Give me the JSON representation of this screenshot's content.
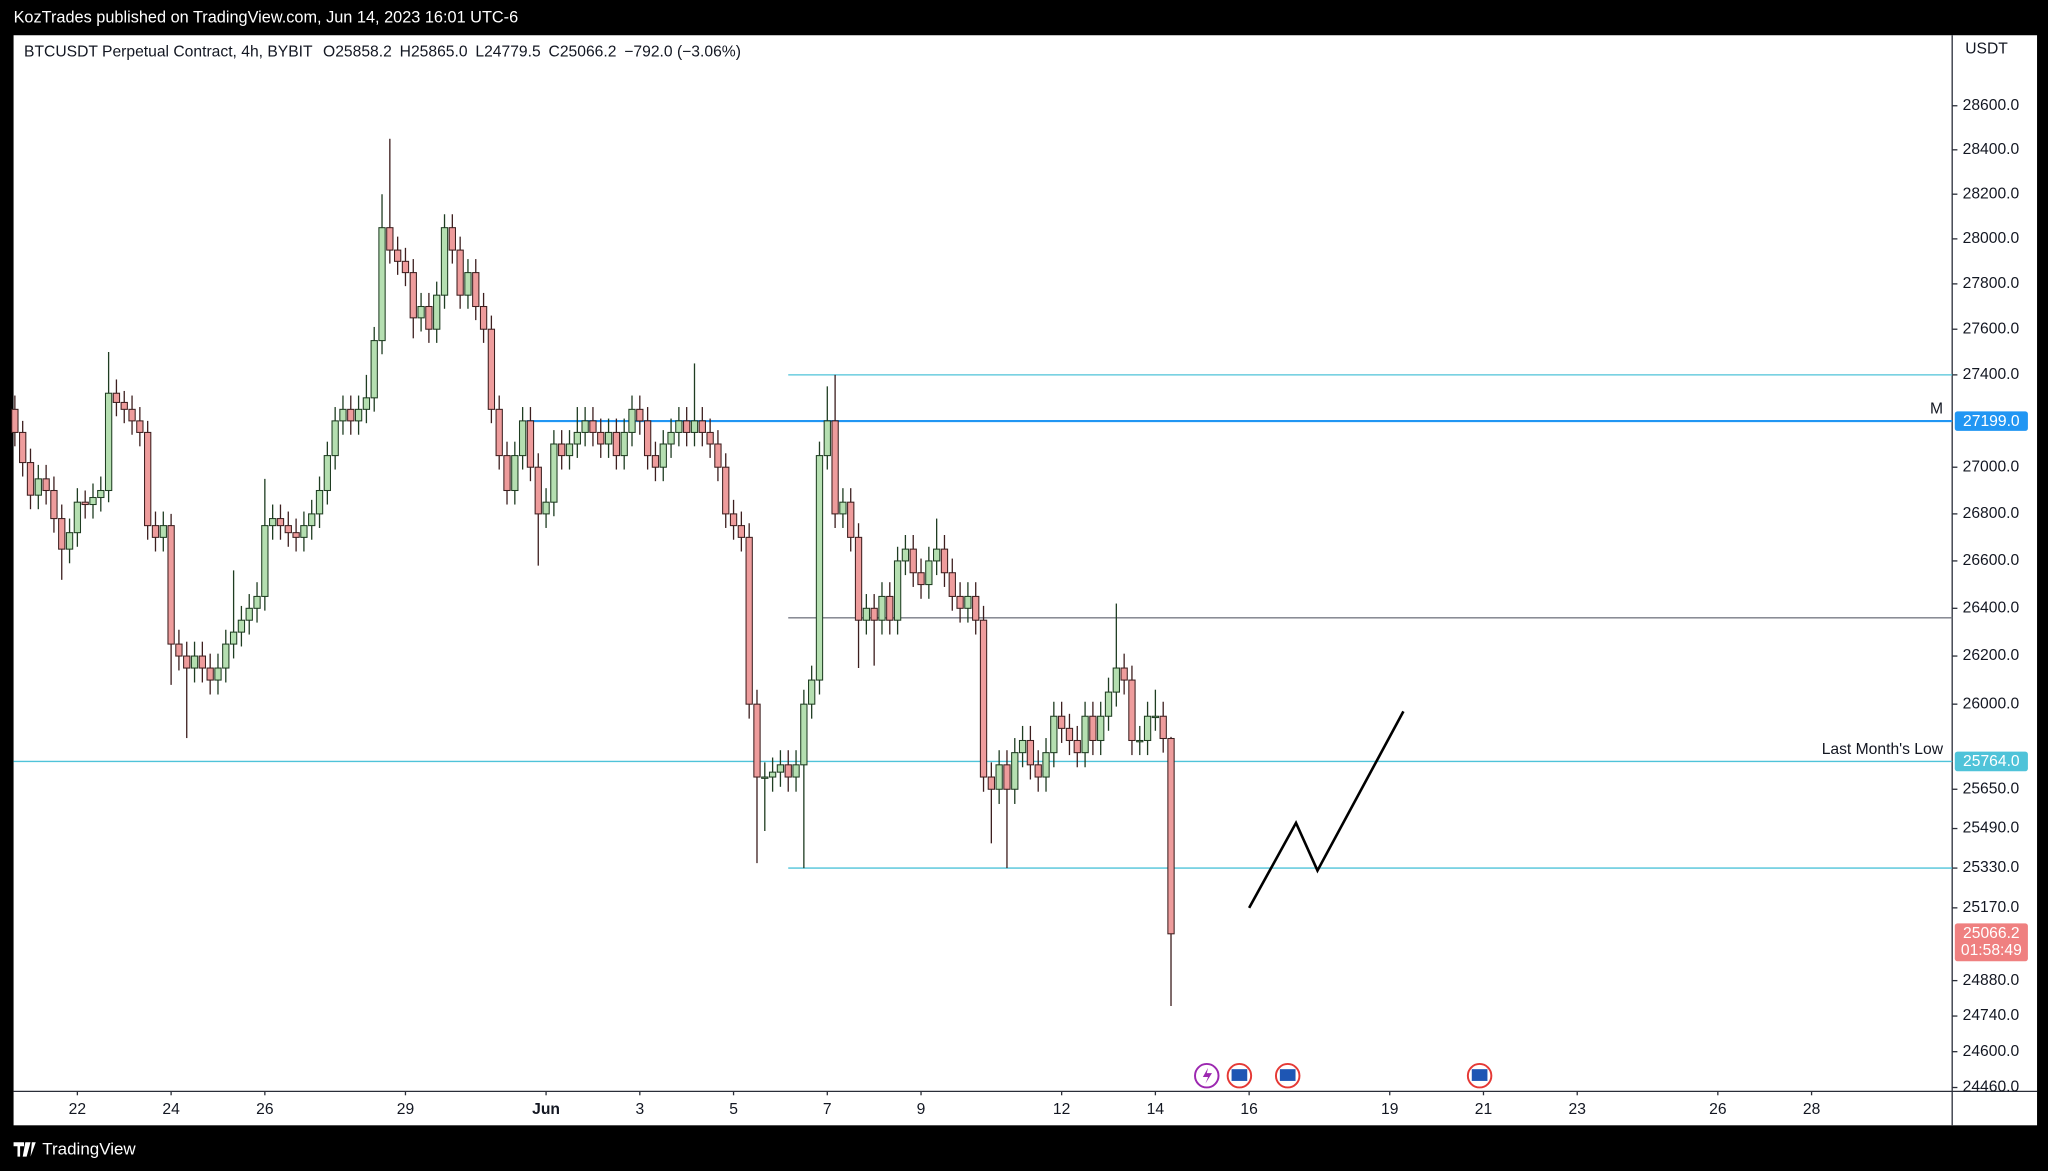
{
  "header": {
    "text": "KozTrades published on TradingView.com, Jun 14, 2023 16:01 UTC-6"
  },
  "footer": {
    "logo": "TradingView"
  },
  "chart_data": {
    "type": "candlestick",
    "title": "BTCUSDT Perpetual Contract, 4h, BYBIT",
    "legend": [
      "O25858.2",
      "H25865.0",
      "L24779.5",
      "C25066.2",
      "−792.0 (−3.06%)"
    ],
    "y_axis_label": "USDT",
    "log": true,
    "grid": false,
    "up_color": "#b5dfb1",
    "down_color": "#ee9c9c",
    "xlim": [
      "2023-05-20T15:20",
      "2023-07-01T00:00"
    ],
    "ylim": [
      24445,
      28923
    ],
    "xticks": [
      {
        "value": "2023-05-22T00:00",
        "label": "22"
      },
      {
        "value": "2023-05-24T00:00",
        "label": "24"
      },
      {
        "value": "2023-05-26T00:00",
        "label": "26"
      },
      {
        "value": "2023-05-29T00:00",
        "label": "29"
      },
      {
        "value": "2023-06-01T00:00",
        "label": "Jun"
      },
      {
        "value": "2023-06-03T00:00",
        "label": "3"
      },
      {
        "value": "2023-06-05T00:00",
        "label": "5"
      },
      {
        "value": "2023-06-07T00:00",
        "label": "7"
      },
      {
        "value": "2023-06-09T00:00",
        "label": "9"
      },
      {
        "value": "2023-06-12T00:00",
        "label": "12"
      },
      {
        "value": "2023-06-14T00:00",
        "label": "14"
      },
      {
        "value": "2023-06-16T00:00",
        "label": "16"
      },
      {
        "value": "2023-06-19T00:00",
        "label": "19"
      },
      {
        "value": "2023-06-21T00:00",
        "label": "21"
      },
      {
        "value": "2023-06-23T00:00",
        "label": "23"
      },
      {
        "value": "2023-06-26T00:00",
        "label": "26"
      },
      {
        "value": "2023-06-28T00:00",
        "label": "28"
      }
    ],
    "yticks": [
      {
        "value": 28600,
        "label": "28600.0"
      },
      {
        "value": 28400,
        "label": "28400.0"
      },
      {
        "value": 28200,
        "label": "28200.0"
      },
      {
        "value": 28000,
        "label": "28000.0"
      },
      {
        "value": 27800,
        "label": "27800.0"
      },
      {
        "value": 27600,
        "label": "27600.0"
      },
      {
        "value": 27400,
        "label": "27400.0"
      },
      {
        "value": 27000,
        "label": "27000.0"
      },
      {
        "value": 26800,
        "label": "26800.0"
      },
      {
        "value": 26600,
        "label": "26600.0"
      },
      {
        "value": 26400,
        "label": "26400.0"
      },
      {
        "value": 26200,
        "label": "26200.0"
      },
      {
        "value": 26000,
        "label": "26000.0"
      },
      {
        "value": 25650,
        "label": "25650.0"
      },
      {
        "value": 25490,
        "label": "25490.0"
      },
      {
        "value": 25330,
        "label": "25330.0"
      },
      {
        "value": 25170,
        "label": "25170.0"
      },
      {
        "value": 24880,
        "label": "24880.0"
      },
      {
        "value": 24740,
        "label": "24740.0"
      },
      {
        "value": 24600,
        "label": "24600.0"
      },
      {
        "value": 24460,
        "label": "24460.0"
      }
    ],
    "lines": [
      {
        "price": 27400,
        "start": "2023-06-06T04:00",
        "color": "#4fc3d9"
      },
      {
        "price": {
          "value": 27199,
          "label": "27199.0"
        },
        "start": "2023-05-31T14:00",
        "color": "#2196f3",
        "text": "M"
      },
      {
        "price": 26360,
        "start": "2023-06-06T04:00",
        "color": "#787b86"
      },
      {
        "price": {
          "value": 25764,
          "label": "25764.0"
        },
        "color": "#4fc3d9",
        "text": "Last Month's Low"
      },
      {
        "price": 25330,
        "start": "2023-06-06T04:00",
        "color": "#4fc3d9"
      }
    ],
    "countdown": "01:58:49",
    "drawing": [
      [
        "2023-06-16T00:00",
        25170
      ],
      [
        "2023-06-17T00:00",
        25513
      ],
      [
        "2023-06-17T11:00",
        25320
      ],
      [
        "2023-06-19T07:00",
        25970
      ]
    ],
    "candles": [
      [
        "2023-05-20T16:00",
        27250,
        27310,
        27090,
        27150
      ],
      [
        "2023-05-20T20:00",
        27150,
        27200,
        26960,
        27020
      ],
      [
        "2023-05-21T00:00",
        27020,
        27080,
        26820,
        26880
      ],
      [
        "2023-05-21T04:00",
        26880,
        27010,
        26820,
        26950
      ],
      [
        "2023-05-21T08:00",
        26950,
        27010,
        26840,
        26900
      ],
      [
        "2023-05-21T12:00",
        26900,
        26960,
        26720,
        26780
      ],
      [
        "2023-05-21T16:00",
        26780,
        26840,
        26520,
        26650
      ],
      [
        "2023-05-21T20:00",
        26650,
        26780,
        26590,
        26720
      ],
      [
        "2023-05-22T00:00",
        26720,
        26910,
        26660,
        26850
      ],
      [
        "2023-05-22T04:00",
        26850,
        26900,
        26780,
        26840
      ],
      [
        "2023-05-22T08:00",
        26840,
        26930,
        26780,
        26870
      ],
      [
        "2023-05-22T12:00",
        26870,
        26960,
        26810,
        26900
      ],
      [
        "2023-05-22T16:00",
        26900,
        27500,
        26850,
        27320
      ],
      [
        "2023-05-22T20:00",
        27320,
        27380,
        27220,
        27280
      ],
      [
        "2023-05-23T00:00",
        27280,
        27330,
        27190,
        27250
      ],
      [
        "2023-05-23T04:00",
        27250,
        27310,
        27140,
        27200
      ],
      [
        "2023-05-23T08:00",
        27200,
        27260,
        27090,
        27150
      ],
      [
        "2023-05-23T12:00",
        27150,
        27200,
        26690,
        26750
      ],
      [
        "2023-05-23T16:00",
        26750,
        26810,
        26640,
        26700
      ],
      [
        "2023-05-23T20:00",
        26700,
        26810,
        26640,
        26750
      ],
      [
        "2023-05-24T00:00",
        26750,
        26800,
        26080,
        26250
      ],
      [
        "2023-05-24T04:00",
        26250,
        26310,
        26140,
        26200
      ],
      [
        "2023-05-24T08:00",
        26200,
        26260,
        25860,
        26150
      ],
      [
        "2023-05-24T12:00",
        26150,
        26260,
        26090,
        26200
      ],
      [
        "2023-05-24T16:00",
        26200,
        26260,
        26090,
        26150
      ],
      [
        "2023-05-24T20:00",
        26150,
        26210,
        26040,
        26100
      ],
      [
        "2023-05-25T00:00",
        26100,
        26210,
        26040,
        26150
      ],
      [
        "2023-05-25T04:00",
        26150,
        26310,
        26090,
        26250
      ],
      [
        "2023-05-25T08:00",
        26250,
        26560,
        26190,
        26300
      ],
      [
        "2023-05-25T12:00",
        26300,
        26410,
        26240,
        26350
      ],
      [
        "2023-05-25T16:00",
        26350,
        26460,
        26290,
        26400
      ],
      [
        "2023-05-25T20:00",
        26400,
        26510,
        26340,
        26450
      ],
      [
        "2023-05-26T00:00",
        26450,
        26950,
        26390,
        26750
      ],
      [
        "2023-05-26T04:00",
        26750,
        26840,
        26690,
        26780
      ],
      [
        "2023-05-26T08:00",
        26780,
        26840,
        26690,
        26750
      ],
      [
        "2023-05-26T12:00",
        26750,
        26810,
        26660,
        26720
      ],
      [
        "2023-05-26T16:00",
        26720,
        26780,
        26640,
        26700
      ],
      [
        "2023-05-26T20:00",
        26700,
        26810,
        26640,
        26750
      ],
      [
        "2023-05-27T00:00",
        26750,
        26860,
        26690,
        26800
      ],
      [
        "2023-05-27T04:00",
        26800,
        26960,
        26740,
        26900
      ],
      [
        "2023-05-27T08:00",
        26900,
        27110,
        26840,
        27050
      ],
      [
        "2023-05-27T12:00",
        27050,
        27260,
        26990,
        27200
      ],
      [
        "2023-05-27T16:00",
        27200,
        27310,
        27140,
        27250
      ],
      [
        "2023-05-27T20:00",
        27250,
        27310,
        27140,
        27200
      ],
      [
        "2023-05-28T00:00",
        27200,
        27310,
        27140,
        27250
      ],
      [
        "2023-05-28T04:00",
        27250,
        27400,
        27190,
        27300
      ],
      [
        "2023-05-28T08:00",
        27300,
        27610,
        27240,
        27550
      ],
      [
        "2023-05-28T12:00",
        27550,
        28200,
        27490,
        28050
      ],
      [
        "2023-05-28T16:00",
        28050,
        28450,
        27890,
        27950
      ],
      [
        "2023-05-28T20:00",
        27950,
        28010,
        27840,
        27900
      ],
      [
        "2023-05-29T00:00",
        27900,
        27960,
        27790,
        27850
      ],
      [
        "2023-05-29T04:00",
        27850,
        27910,
        27560,
        27650
      ],
      [
        "2023-05-29T08:00",
        27650,
        27760,
        27590,
        27700
      ],
      [
        "2023-05-29T12:00",
        27700,
        27760,
        27540,
        27600
      ],
      [
        "2023-05-29T16:00",
        27600,
        27810,
        27540,
        27750
      ],
      [
        "2023-05-29T20:00",
        27750,
        28110,
        27690,
        28050
      ],
      [
        "2023-05-30T00:00",
        28050,
        28110,
        27890,
        27950
      ],
      [
        "2023-05-30T04:00",
        27950,
        28010,
        27690,
        27750
      ],
      [
        "2023-05-30T08:00",
        27750,
        27910,
        27690,
        27850
      ],
      [
        "2023-05-30T12:00",
        27850,
        27910,
        27640,
        27700
      ],
      [
        "2023-05-30T16:00",
        27700,
        27760,
        27540,
        27600
      ],
      [
        "2023-05-30T20:00",
        27600,
        27660,
        27190,
        27250
      ],
      [
        "2023-05-31T00:00",
        27250,
        27310,
        26990,
        27050
      ],
      [
        "2023-05-31T04:00",
        27050,
        27110,
        26840,
        26900
      ],
      [
        "2023-05-31T08:00",
        26900,
        27110,
        26840,
        27050
      ],
      [
        "2023-05-31T12:00",
        27050,
        27260,
        26990,
        27200
      ],
      [
        "2023-05-31T16:00",
        27200,
        27260,
        26940,
        27000
      ],
      [
        "2023-05-31T20:00",
        27000,
        27060,
        26580,
        26800
      ],
      [
        "2023-06-01T00:00",
        26800,
        26910,
        26740,
        26850
      ],
      [
        "2023-06-01T04:00",
        26850,
        27160,
        26790,
        27100
      ],
      [
        "2023-06-01T08:00",
        27100,
        27160,
        26990,
        27050
      ],
      [
        "2023-06-01T12:00",
        27050,
        27160,
        26990,
        27100
      ],
      [
        "2023-06-01T16:00",
        27100,
        27260,
        27040,
        27150
      ],
      [
        "2023-06-01T20:00",
        27150,
        27260,
        27090,
        27200
      ],
      [
        "2023-06-02T00:00",
        27200,
        27260,
        27090,
        27150
      ],
      [
        "2023-06-02T04:00",
        27150,
        27210,
        27040,
        27100
      ],
      [
        "2023-06-02T08:00",
        27100,
        27210,
        27040,
        27150
      ],
      [
        "2023-06-02T12:00",
        27150,
        27210,
        26990,
        27050
      ],
      [
        "2023-06-02T16:00",
        27050,
        27210,
        26990,
        27150
      ],
      [
        "2023-06-02T20:00",
        27150,
        27310,
        27090,
        27250
      ],
      [
        "2023-06-03T00:00",
        27250,
        27310,
        27140,
        27200
      ],
      [
        "2023-06-03T04:00",
        27200,
        27260,
        26990,
        27050
      ],
      [
        "2023-06-03T08:00",
        27050,
        27110,
        26940,
        27000
      ],
      [
        "2023-06-03T12:00",
        27000,
        27160,
        26940,
        27100
      ],
      [
        "2023-06-03T16:00",
        27100,
        27210,
        27040,
        27150
      ],
      [
        "2023-06-03T20:00",
        27150,
        27260,
        27090,
        27200
      ],
      [
        "2023-06-04T00:00",
        27200,
        27260,
        27090,
        27150
      ],
      [
        "2023-06-04T04:00",
        27150,
        27450,
        27090,
        27200
      ],
      [
        "2023-06-04T08:00",
        27200,
        27260,
        27090,
        27150
      ],
      [
        "2023-06-04T12:00",
        27150,
        27210,
        27040,
        27100
      ],
      [
        "2023-06-04T16:00",
        27100,
        27160,
        26940,
        27000
      ],
      [
        "2023-06-04T20:00",
        27000,
        27060,
        26740,
        26800
      ],
      [
        "2023-06-05T00:00",
        26800,
        26860,
        26690,
        26750
      ],
      [
        "2023-06-05T04:00",
        26750,
        26810,
        26640,
        26700
      ],
      [
        "2023-06-05T08:00",
        26700,
        26760,
        25940,
        26000
      ],
      [
        "2023-06-05T12:00",
        26000,
        26060,
        25350,
        25700
      ],
      [
        "2023-06-05T16:00",
        25700,
        25760,
        25480,
        25700
      ],
      [
        "2023-06-05T20:00",
        25700,
        25780,
        25640,
        25720
      ],
      [
        "2023-06-06T00:00",
        25720,
        25810,
        25660,
        25750
      ],
      [
        "2023-06-06T04:00",
        25750,
        25810,
        25640,
        25700
      ],
      [
        "2023-06-06T08:00",
        25700,
        25810,
        25640,
        25750
      ],
      [
        "2023-06-06T12:00",
        25750,
        26060,
        25330,
        26000
      ],
      [
        "2023-06-06T16:00",
        26000,
        26160,
        25940,
        26100
      ],
      [
        "2023-06-06T20:00",
        26100,
        27110,
        26040,
        27050
      ],
      [
        "2023-06-07T00:00",
        27050,
        27350,
        26990,
        27200
      ],
      [
        "2023-06-07T04:00",
        27200,
        27400,
        26740,
        26800
      ],
      [
        "2023-06-07T08:00",
        26800,
        26910,
        26740,
        26850
      ],
      [
        "2023-06-07T12:00",
        26850,
        26910,
        26640,
        26700
      ],
      [
        "2023-06-07T16:00",
        26700,
        26760,
        26150,
        26350
      ],
      [
        "2023-06-07T20:00",
        26350,
        26460,
        26290,
        26400
      ],
      [
        "2023-06-08T00:00",
        26400,
        26460,
        26160,
        26350
      ],
      [
        "2023-06-08T04:00",
        26350,
        26510,
        26290,
        26450
      ],
      [
        "2023-06-08T08:00",
        26450,
        26510,
        26290,
        26350
      ],
      [
        "2023-06-08T12:00",
        26350,
        26660,
        26290,
        26600
      ],
      [
        "2023-06-08T16:00",
        26600,
        26710,
        26540,
        26650
      ],
      [
        "2023-06-08T20:00",
        26650,
        26710,
        26490,
        26550
      ],
      [
        "2023-06-09T00:00",
        26550,
        26610,
        26440,
        26500
      ],
      [
        "2023-06-09T04:00",
        26500,
        26660,
        26440,
        26600
      ],
      [
        "2023-06-09T08:00",
        26600,
        26780,
        26540,
        26650
      ],
      [
        "2023-06-09T12:00",
        26650,
        26710,
        26490,
        26550
      ],
      [
        "2023-06-09T16:00",
        26550,
        26610,
        26390,
        26450
      ],
      [
        "2023-06-09T20:00",
        26450,
        26510,
        26340,
        26400
      ],
      [
        "2023-06-10T00:00",
        26400,
        26510,
        26340,
        26450
      ],
      [
        "2023-06-10T04:00",
        26450,
        26510,
        26290,
        26350
      ],
      [
        "2023-06-10T08:00",
        26350,
        26410,
        25640,
        25700
      ],
      [
        "2023-06-10T12:00",
        25700,
        25760,
        25430,
        25650
      ],
      [
        "2023-06-10T16:00",
        25650,
        25810,
        25590,
        25750
      ],
      [
        "2023-06-10T20:00",
        25750,
        25810,
        25330,
        25650
      ],
      [
        "2023-06-11T00:00",
        25650,
        25860,
        25590,
        25800
      ],
      [
        "2023-06-11T04:00",
        25800,
        25910,
        25740,
        25850
      ],
      [
        "2023-06-11T08:00",
        25850,
        25910,
        25690,
        25750
      ],
      [
        "2023-06-11T12:00",
        25750,
        25810,
        25640,
        25700
      ],
      [
        "2023-06-11T16:00",
        25700,
        25860,
        25640,
        25800
      ],
      [
        "2023-06-11T20:00",
        25800,
        26010,
        25740,
        25950
      ],
      [
        "2023-06-12T00:00",
        25950,
        26010,
        25840,
        25900
      ],
      [
        "2023-06-12T04:00",
        25900,
        25960,
        25790,
        25850
      ],
      [
        "2023-06-12T08:00",
        25850,
        25910,
        25740,
        25800
      ],
      [
        "2023-06-12T12:00",
        25800,
        26010,
        25740,
        25950
      ],
      [
        "2023-06-12T16:00",
        25950,
        26010,
        25790,
        25850
      ],
      [
        "2023-06-12T20:00",
        25850,
        26010,
        25790,
        25950
      ],
      [
        "2023-06-13T00:00",
        25950,
        26110,
        25890,
        26050
      ],
      [
        "2023-06-13T04:00",
        26050,
        26420,
        25990,
        26150
      ],
      [
        "2023-06-13T08:00",
        26150,
        26210,
        26040,
        26100
      ],
      [
        "2023-06-13T12:00",
        26100,
        26160,
        25790,
        25850
      ],
      [
        "2023-06-13T16:00",
        25850,
        25910,
        25790,
        25850
      ],
      [
        "2023-06-13T20:00",
        25850,
        26010,
        25790,
        25950
      ],
      [
        "2023-06-14T00:00",
        25950,
        26060,
        25890,
        25950
      ],
      [
        "2023-06-14T04:00",
        25950,
        26010,
        25800,
        25858.2
      ],
      [
        "2023-06-14T08:00",
        25858.2,
        25865,
        24779.5,
        25066.2
      ]
    ]
  }
}
